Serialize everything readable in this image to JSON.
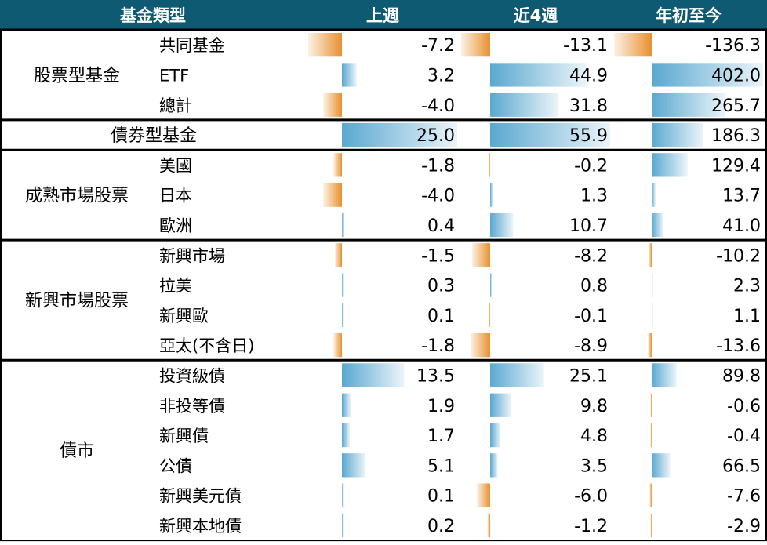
{
  "header": {
    "col_type": "基金類型",
    "col_week": "上週",
    "col_4w": "近4週",
    "col_ytd": "年初至今"
  },
  "colors": {
    "header_bg": "#0d5a72",
    "positive": "#5aa8d0",
    "negative": "#e8902e",
    "divider": "#000000"
  },
  "chart_data": {
    "type": "table",
    "columns": [
      "上週",
      "近4週",
      "年初至今"
    ],
    "groups": [
      {
        "name": "股票型基金",
        "rows": [
          {
            "label": "共同基金",
            "values": [
              -7.2,
              -13.1,
              -136.3
            ]
          },
          {
            "label": "ETF",
            "values": [
              3.2,
              44.9,
              402.0
            ]
          },
          {
            "label": "總計",
            "values": [
              -4.0,
              31.8,
              265.7
            ]
          }
        ]
      },
      {
        "name": "債券型基金",
        "rows": [
          {
            "label": "",
            "values": [
              25.0,
              55.9,
              186.3
            ]
          }
        ]
      },
      {
        "name": "成熟市場股票",
        "rows": [
          {
            "label": "美國",
            "values": [
              -1.8,
              -0.2,
              129.4
            ]
          },
          {
            "label": "日本",
            "values": [
              -4.0,
              1.3,
              13.7
            ]
          },
          {
            "label": "歐洲",
            "values": [
              0.4,
              10.7,
              41.0
            ]
          }
        ]
      },
      {
        "name": "新興市場股票",
        "rows": [
          {
            "label": "新興市場",
            "values": [
              -1.5,
              -8.2,
              -10.2
            ]
          },
          {
            "label": "拉美",
            "values": [
              0.3,
              0.8,
              2.3
            ]
          },
          {
            "label": "新興歐",
            "values": [
              0.1,
              -0.1,
              1.1
            ]
          },
          {
            "label": "亞太(不含日)",
            "values": [
              -1.8,
              -8.9,
              -13.6
            ]
          }
        ]
      },
      {
        "name": "債市",
        "rows": [
          {
            "label": "投資級債",
            "values": [
              13.5,
              25.1,
              89.8
            ]
          },
          {
            "label": "非投等債",
            "values": [
              1.9,
              9.8,
              -0.6
            ]
          },
          {
            "label": "新興債",
            "values": [
              1.7,
              4.8,
              -0.4
            ]
          },
          {
            "label": "公債",
            "values": [
              5.1,
              3.5,
              66.5
            ]
          },
          {
            "label": "新興美元債",
            "values": [
              0.1,
              -6.0,
              -7.6
            ]
          },
          {
            "label": "新興本地債",
            "values": [
              0.2,
              -1.2,
              -2.9
            ]
          }
        ]
      }
    ],
    "value_labels": [
      [
        "-7.2",
        "-13.1",
        "-136.3"
      ],
      [
        "3.2",
        "44.9",
        "402.0"
      ],
      [
        "-4.0",
        "31.8",
        "265.7"
      ],
      [
        "25.0",
        "55.9",
        "186.3"
      ],
      [
        "-1.8",
        "-0.2",
        "129.4"
      ],
      [
        "-4.0",
        "1.3",
        "13.7"
      ],
      [
        "0.4",
        "10.7",
        "41.0"
      ],
      [
        "-1.5",
        "-8.2",
        "-10.2"
      ],
      [
        "0.3",
        "0.8",
        "2.3"
      ],
      [
        "0.1",
        "-0.1",
        "1.1"
      ],
      [
        "-1.8",
        "-8.9",
        "-13.6"
      ],
      [
        "13.5",
        "25.1",
        "89.8"
      ],
      [
        "1.9",
        "9.8",
        "-0.6"
      ],
      [
        "1.7",
        "4.8",
        "-0.4"
      ],
      [
        "5.1",
        "3.5",
        "66.5"
      ],
      [
        "0.1",
        "-6.0",
        "-7.6"
      ],
      [
        "0.2",
        "-1.2",
        "-2.9"
      ]
    ]
  }
}
